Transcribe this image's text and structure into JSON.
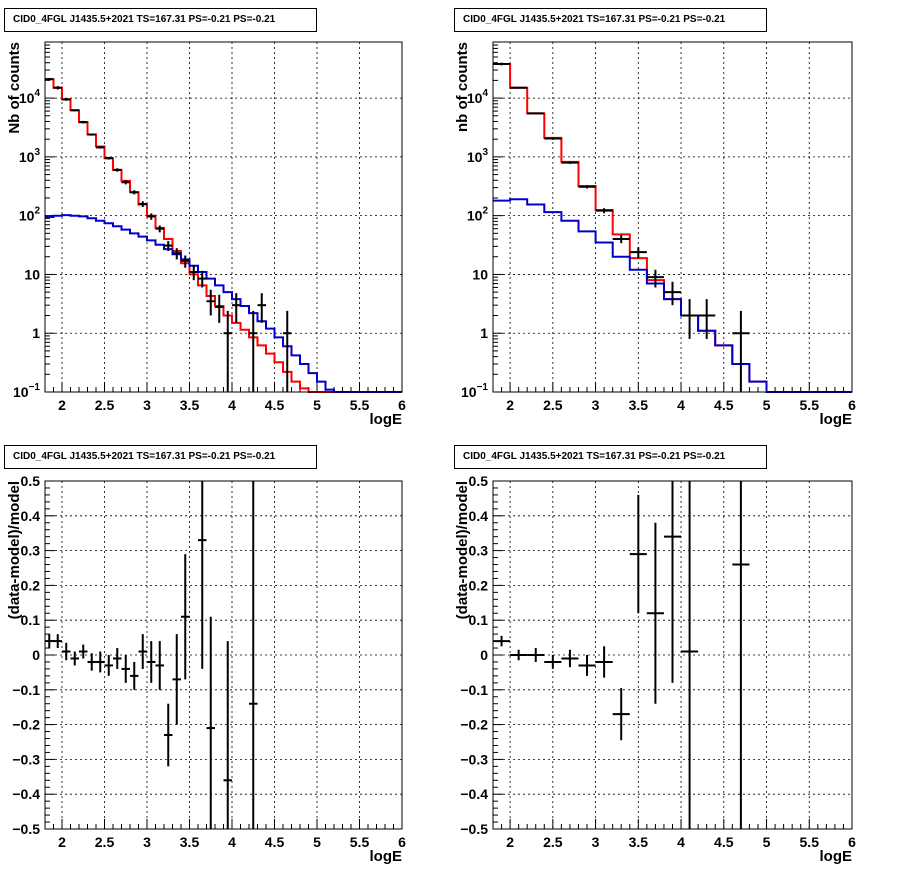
{
  "chart_data": [
    {
      "id": "counts-left",
      "type": "histogram",
      "title": "CID0_4FGL J1435.5+2021 TS=167.31 PS=-0.21 PS=-0.21",
      "xlabel": "logE",
      "ylabel": "Nb of counts",
      "scale_y": "log",
      "xlim": [
        1.8,
        6.0
      ],
      "ylim": [
        0.1,
        90000
      ],
      "x_ticks": [
        "2",
        "2.5",
        "3",
        "3.5",
        "4",
        "4.5",
        "5",
        "5.5",
        "6"
      ],
      "y_ticks": [
        {
          "value": 0.1,
          "label": "10",
          "exp": "−1"
        },
        {
          "value": 1,
          "label": "1",
          "exp": ""
        },
        {
          "value": 10,
          "label": "10",
          "exp": ""
        },
        {
          "value": 100,
          "label": "10",
          "exp": "2"
        },
        {
          "value": 1000,
          "label": "10",
          "exp": "3"
        },
        {
          "value": 10000,
          "label": "10",
          "exp": "4"
        }
      ],
      "grid": true,
      "bin_edges": [
        1.8,
        1.9,
        2.0,
        2.1,
        2.2,
        2.3,
        2.4,
        2.5,
        2.6,
        2.7,
        2.8,
        2.9,
        3.0,
        3.1,
        3.2,
        3.3,
        3.4,
        3.5,
        3.6,
        3.7,
        3.8,
        3.9,
        4.0,
        4.1,
        4.2,
        4.3,
        4.4,
        4.5,
        4.6,
        4.7,
        4.8,
        4.9,
        5.0,
        5.1,
        5.2,
        5.3,
        5.4,
        5.5,
        5.6,
        5.7,
        5.8,
        5.9,
        6.0
      ],
      "series": [
        {
          "color": "#ff0000",
          "values": [
            21000,
            15000,
            9500,
            6200,
            3900,
            2400,
            1500,
            950,
            600,
            390,
            250,
            155,
            100,
            62,
            40,
            25,
            15.5,
            10,
            6.5,
            4.3,
            2.9,
            2.0,
            1.5,
            1.15,
            0.85,
            0.62,
            0.45,
            0.32,
            0.22,
            0.15,
            0.115,
            0.1,
            0.1,
            0.1,
            0.1,
            0.1,
            0.1,
            0.1,
            0.1,
            0.1,
            0.1,
            0.1
          ]
        },
        {
          "color": "#0000cc",
          "values": [
            95,
            100,
            102,
            100,
            97,
            90,
            82,
            74,
            66,
            58,
            50,
            44,
            38,
            32,
            27,
            22,
            18,
            14,
            11,
            8.5,
            6.5,
            5.0,
            3.8,
            2.9,
            2.2,
            1.6,
            1.2,
            0.85,
            0.6,
            0.42,
            0.3,
            0.21,
            0.15,
            0.11,
            0.1,
            0.1,
            0.1,
            0.1,
            0.1,
            0.1,
            0.1,
            0.1
          ]
        }
      ],
      "points": [
        {
          "x": 1.85,
          "y": 21000,
          "lo": 20000,
          "hi": 22000
        },
        {
          "x": 1.95,
          "y": 15000,
          "lo": 14000,
          "hi": 16000
        },
        {
          "x": 2.05,
          "y": 9500,
          "lo": 9000,
          "hi": 10000
        },
        {
          "x": 2.15,
          "y": 6200,
          "lo": 6000,
          "hi": 6400
        },
        {
          "x": 2.25,
          "y": 3900,
          "lo": 3700,
          "hi": 4100
        },
        {
          "x": 2.35,
          "y": 2400,
          "lo": 2300,
          "hi": 2500
        },
        {
          "x": 2.45,
          "y": 1450,
          "lo": 1380,
          "hi": 1520
        },
        {
          "x": 2.55,
          "y": 950,
          "lo": 900,
          "hi": 1000
        },
        {
          "x": 2.65,
          "y": 600,
          "lo": 560,
          "hi": 640
        },
        {
          "x": 2.75,
          "y": 370,
          "lo": 340,
          "hi": 400
        },
        {
          "x": 2.85,
          "y": 250,
          "lo": 230,
          "hi": 270
        },
        {
          "x": 2.95,
          "y": 158,
          "lo": 140,
          "hi": 176
        },
        {
          "x": 3.05,
          "y": 97,
          "lo": 85,
          "hi": 109
        },
        {
          "x": 3.15,
          "y": 60,
          "lo": 52,
          "hi": 68
        },
        {
          "x": 3.25,
          "y": 31,
          "lo": 25,
          "hi": 37
        },
        {
          "x": 3.35,
          "y": 23,
          "lo": 18,
          "hi": 28
        },
        {
          "x": 3.45,
          "y": 17,
          "lo": 13,
          "hi": 21
        },
        {
          "x": 3.55,
          "y": 11,
          "lo": 8,
          "hi": 14.5
        },
        {
          "x": 3.65,
          "y": 8.5,
          "lo": 6,
          "hi": 11.5
        },
        {
          "x": 3.75,
          "y": 3.5,
          "lo": 2,
          "hi": 5.5
        },
        {
          "x": 3.85,
          "y": 2.8,
          "lo": 1.5,
          "hi": 4.5
        },
        {
          "x": 3.95,
          "y": 1,
          "lo": 0.1,
          "hi": 2.4
        },
        {
          "x": 4.05,
          "y": 3,
          "lo": 1.5,
          "hi": 4.8
        },
        {
          "x": 4.25,
          "y": 1,
          "lo": 0.1,
          "hi": 2.4
        },
        {
          "x": 4.35,
          "y": 3,
          "lo": 1.5,
          "hi": 4.8
        },
        {
          "x": 4.65,
          "y": 1,
          "lo": 0.1,
          "hi": 2.4
        }
      ]
    },
    {
      "id": "counts-right",
      "type": "histogram",
      "title": "CID0_4FGL J1435.5+2021 TS=167.31 PS=-0.21 PS=-0.21",
      "xlabel": "logE",
      "ylabel": "nb of counts",
      "scale_y": "log",
      "xlim": [
        1.8,
        6.0
      ],
      "ylim": [
        0.1,
        90000
      ],
      "x_ticks": [
        "2",
        "2.5",
        "3",
        "3.5",
        "4",
        "4.5",
        "5",
        "5.5",
        "6"
      ],
      "y_ticks": [
        {
          "value": 0.1,
          "label": "10",
          "exp": "−1"
        },
        {
          "value": 1,
          "label": "1",
          "exp": ""
        },
        {
          "value": 10,
          "label": "10",
          "exp": ""
        },
        {
          "value": 100,
          "label": "10",
          "exp": "2"
        },
        {
          "value": 1000,
          "label": "10",
          "exp": "3"
        },
        {
          "value": 10000,
          "label": "10",
          "exp": "4"
        }
      ],
      "grid": true,
      "bin_edges": [
        1.8,
        2.0,
        2.2,
        2.4,
        2.6,
        2.8,
        3.0,
        3.2,
        3.4,
        3.6,
        3.8,
        4.0,
        4.2,
        4.4,
        4.6,
        4.8,
        5.0,
        5.2,
        5.4,
        5.6,
        5.8,
        6.0
      ],
      "series": [
        {
          "color": "#ff0000",
          "values": [
            38000,
            15000,
            5500,
            2100,
            820,
            320,
            125,
            48,
            19,
            8,
            3.8,
            2.0,
            1.1,
            0.62,
            0.3,
            0.15,
            0.1,
            0.1,
            0.1,
            0.1,
            0.1
          ]
        },
        {
          "color": "#0000cc",
          "values": [
            180,
            190,
            155,
            115,
            82,
            54,
            35,
            20,
            12,
            7,
            3.8,
            2.0,
            1.1,
            0.62,
            0.3,
            0.15,
            0.1,
            0.1,
            0.1,
            0.1,
            0.1
          ]
        }
      ],
      "points": [
        {
          "x": 1.9,
          "y": 38000,
          "lo": 36000,
          "hi": 40000
        },
        {
          "x": 2.1,
          "y": 15000,
          "lo": 14500,
          "hi": 15500
        },
        {
          "x": 2.3,
          "y": 5500,
          "lo": 5300,
          "hi": 5700
        },
        {
          "x": 2.5,
          "y": 2050,
          "lo": 1950,
          "hi": 2150
        },
        {
          "x": 2.7,
          "y": 800,
          "lo": 760,
          "hi": 840
        },
        {
          "x": 2.9,
          "y": 310,
          "lo": 290,
          "hi": 330
        },
        {
          "x": 3.1,
          "y": 122,
          "lo": 110,
          "hi": 134
        },
        {
          "x": 3.3,
          "y": 40,
          "lo": 34,
          "hi": 47
        },
        {
          "x": 3.5,
          "y": 24,
          "lo": 19,
          "hi": 29
        },
        {
          "x": 3.7,
          "y": 9,
          "lo": 6,
          "hi": 12
        },
        {
          "x": 3.9,
          "y": 5,
          "lo": 3,
          "hi": 7.5
        },
        {
          "x": 4.1,
          "y": 2,
          "lo": 0.8,
          "hi": 3.8
        },
        {
          "x": 4.3,
          "y": 2,
          "lo": 0.8,
          "hi": 3.8
        },
        {
          "x": 4.7,
          "y": 1,
          "lo": 0.1,
          "hi": 2.4
        }
      ]
    },
    {
      "id": "residual-left",
      "type": "scatter",
      "title": "CID0_4FGL J1435.5+2021 TS=167.31 PS=-0.21 PS=-0.21",
      "xlabel": "logE",
      "ylabel": "(data-model)/model",
      "scale_y": "linear",
      "xlim": [
        1.8,
        6.0
      ],
      "ylim": [
        -0.5,
        0.5
      ],
      "x_ticks": [
        "2",
        "2.5",
        "3",
        "3.5",
        "4",
        "4.5",
        "5",
        "5.5",
        "6"
      ],
      "y_ticks": [
        {
          "value": -0.5,
          "label": "−0.5"
        },
        {
          "value": -0.4,
          "label": "−0.4"
        },
        {
          "value": -0.3,
          "label": "−0.3"
        },
        {
          "value": -0.2,
          "label": "−0.2"
        },
        {
          "value": -0.1,
          "label": "−0.1"
        },
        {
          "value": 0,
          "label": "0"
        },
        {
          "value": 0.1,
          "label": "0.1"
        },
        {
          "value": 0.2,
          "label": "0.2"
        },
        {
          "value": 0.3,
          "label": "0.3"
        },
        {
          "value": 0.4,
          "label": "0.4"
        },
        {
          "value": 0.5,
          "label": "0.5"
        }
      ],
      "grid": true,
      "xerr": 0.05,
      "points": [
        {
          "x": 1.85,
          "y": 0.04,
          "err": 0.02
        },
        {
          "x": 1.95,
          "y": 0.04,
          "err": 0.02
        },
        {
          "x": 2.05,
          "y": 0.01,
          "err": 0.025
        },
        {
          "x": 2.15,
          "y": -0.01,
          "err": 0.02
        },
        {
          "x": 2.25,
          "y": 0.01,
          "err": 0.02
        },
        {
          "x": 2.35,
          "y": -0.02,
          "err": 0.025
        },
        {
          "x": 2.45,
          "y": -0.02,
          "err": 0.03
        },
        {
          "x": 2.55,
          "y": -0.03,
          "err": 0.03
        },
        {
          "x": 2.65,
          "y": -0.01,
          "err": 0.03
        },
        {
          "x": 2.75,
          "y": -0.04,
          "err": 0.04
        },
        {
          "x": 2.85,
          "y": -0.06,
          "err": 0.04
        },
        {
          "x": 2.95,
          "y": 0.01,
          "err": 0.05
        },
        {
          "x": 3.05,
          "y": -0.02,
          "err": 0.06
        },
        {
          "x": 3.15,
          "y": -0.03,
          "err": 0.07
        },
        {
          "x": 3.25,
          "y": -0.23,
          "err": 0.09
        },
        {
          "x": 3.35,
          "y": -0.07,
          "err": 0.13
        },
        {
          "x": 3.45,
          "y": 0.11,
          "err": 0.18
        },
        {
          "x": 3.65,
          "y": 0.33,
          "err": 0.37
        },
        {
          "x": 3.75,
          "y": -0.21,
          "err": 0.32
        },
        {
          "x": 3.95,
          "y": -0.36,
          "err": 0.4
        },
        {
          "x": 4.25,
          "y": -0.14,
          "err": 0.9
        }
      ]
    },
    {
      "id": "residual-right",
      "type": "scatter",
      "title": "CID0_4FGL J1435.5+2021 TS=167.31 PS=-0.21 PS=-0.21",
      "xlabel": "logE",
      "ylabel": "(data-model)/model",
      "scale_y": "linear",
      "xlim": [
        1.8,
        6.0
      ],
      "ylim": [
        -0.5,
        0.5
      ],
      "x_ticks": [
        "2",
        "2.5",
        "3",
        "3.5",
        "4",
        "4.5",
        "5",
        "5.5",
        "6"
      ],
      "y_ticks": [
        {
          "value": -0.5,
          "label": "−0.5"
        },
        {
          "value": -0.4,
          "label": "−0.4"
        },
        {
          "value": -0.3,
          "label": "−0.3"
        },
        {
          "value": -0.2,
          "label": "−0.2"
        },
        {
          "value": -0.1,
          "label": "−0.1"
        },
        {
          "value": 0,
          "label": "0"
        },
        {
          "value": 0.1,
          "label": "0.1"
        },
        {
          "value": 0.2,
          "label": "0.2"
        },
        {
          "value": 0.3,
          "label": "0.3"
        },
        {
          "value": 0.4,
          "label": "0.4"
        },
        {
          "value": 0.5,
          "label": "0.5"
        }
      ],
      "grid": true,
      "xerr": 0.1,
      "points": [
        {
          "x": 1.9,
          "y": 0.04,
          "err": 0.015
        },
        {
          "x": 2.1,
          "y": 0.0,
          "err": 0.015
        },
        {
          "x": 2.3,
          "y": 0.0,
          "err": 0.02
        },
        {
          "x": 2.5,
          "y": -0.02,
          "err": 0.02
        },
        {
          "x": 2.7,
          "y": -0.01,
          "err": 0.025
        },
        {
          "x": 2.9,
          "y": -0.03,
          "err": 0.03
        },
        {
          "x": 3.1,
          "y": -0.02,
          "err": 0.045
        },
        {
          "x": 3.3,
          "y": -0.17,
          "err": 0.075
        },
        {
          "x": 3.5,
          "y": 0.29,
          "err": 0.17
        },
        {
          "x": 3.7,
          "y": 0.12,
          "err": 0.26
        },
        {
          "x": 3.9,
          "y": 0.34,
          "err": 0.42
        },
        {
          "x": 4.1,
          "y": 0.01,
          "err": 0.9
        },
        {
          "x": 4.7,
          "y": 0.26,
          "err": 0.9
        }
      ]
    }
  ]
}
